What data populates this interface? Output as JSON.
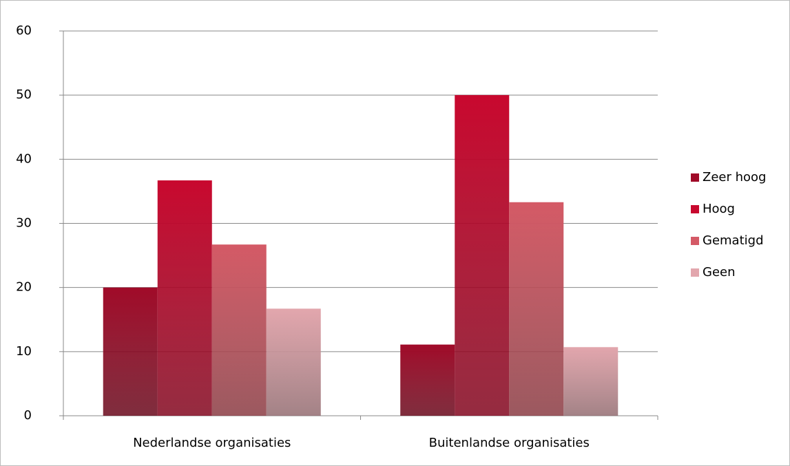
{
  "chart_data": {
    "type": "bar",
    "categories": [
      "Nederlandse organisaties",
      "Buitenlandse organisaties"
    ],
    "series": [
      {
        "name": "Zeer hoog",
        "color": "#a00a28",
        "values": [
          20,
          11.1
        ]
      },
      {
        "name": "Hoog",
        "color": "#c8082e",
        "values": [
          36.7,
          50
        ]
      },
      {
        "name": "Gematigd",
        "color": "#d45a66",
        "values": [
          26.7,
          33.3
        ]
      },
      {
        "name": "Geen",
        "color": "#e2a6ad",
        "values": [
          16.7,
          10.7
        ]
      }
    ],
    "ylim": [
      0,
      60
    ],
    "yticks": [
      0,
      10,
      20,
      30,
      40,
      50,
      60
    ],
    "grid": true,
    "legend": "right"
  }
}
